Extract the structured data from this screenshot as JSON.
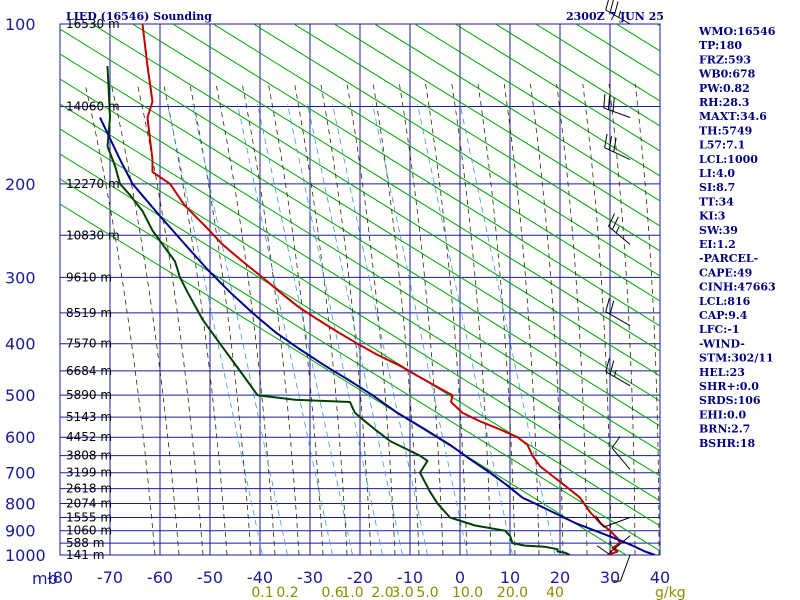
{
  "chart_data": {
    "type": "line",
    "title": "LIED (16546) Sounding",
    "valid_time": "2300Z  7 JUN 25",
    "pressure_ticks": [
      "100",
      "200",
      "300",
      "400",
      "500",
      "600",
      "700",
      "800",
      "900",
      "1000"
    ],
    "pressure_levels": [
      100,
      200,
      300,
      400,
      500,
      600,
      700,
      800,
      900,
      1000
    ],
    "temperature_ticks": [
      "-80",
      "-70",
      "-60",
      "-50",
      "-40",
      "-30",
      "-20",
      "-10",
      "0",
      "10",
      "20",
      "30",
      "40"
    ],
    "temperature_values": [
      -80,
      -70,
      -60,
      -50,
      -40,
      -30,
      -20,
      -10,
      0,
      10,
      20,
      30,
      40
    ],
    "pressure_axis_unit": "mb",
    "mixing_ratio_unit": "g/kg",
    "mixing_ratio_ticks": [
      {
        "label": "0.1",
        "t": -39.5
      },
      {
        "label": "0.2",
        "t": -34.5
      },
      {
        "label": "0.6",
        "t": -25.5
      },
      {
        "label": "1.0",
        "t": -21.5
      },
      {
        "label": "2.0",
        "t": -15.5
      },
      {
        "label": "3.0",
        "t": -11.5
      },
      {
        "label": "5.0",
        "t": -6.5
      },
      {
        "label": "10.0",
        "t": 1.5
      },
      {
        "label": "20.0",
        "t": 10.5
      },
      {
        "label": "40",
        "t": 19.0
      }
    ],
    "height_labels": [
      {
        "label": "16530 m",
        "p": 100
      },
      {
        "label": "14060 m",
        "p": 143
      },
      {
        "label": "12270 m",
        "p": 200
      },
      {
        "label": "10830 m",
        "p": 250
      },
      {
        "label": "9610 m",
        "p": 300
      },
      {
        "label": "8519 m",
        "p": 350
      },
      {
        "label": "7570 m",
        "p": 400
      },
      {
        "label": "6684 m",
        "p": 450
      },
      {
        "label": "5890 m",
        "p": 500
      },
      {
        "label": "5143 m",
        "p": 550
      },
      {
        "label": "4452 m",
        "p": 600
      },
      {
        "label": "3808 m",
        "p": 650
      },
      {
        "label": "3199 m",
        "p": 700
      },
      {
        "label": "2618 m",
        "p": 750
      },
      {
        "label": "2074 m",
        "p": 800
      },
      {
        "label": "1555 m",
        "p": 850
      },
      {
        "label": "1060 m",
        "p": 900
      },
      {
        "label": "588 m",
        "p": 950
      },
      {
        "label": "141 m",
        "p": 1000
      }
    ],
    "series": [
      {
        "name": "Temperature",
        "color": "#c00000",
        "points": [
          [
            -63.5,
            100
          ],
          [
            -62.5,
            120
          ],
          [
            -61.5,
            140
          ],
          [
            -62.5,
            150
          ],
          [
            -62.0,
            165
          ],
          [
            -61.5,
            180
          ],
          [
            -61.5,
            190
          ],
          [
            -58.0,
            200
          ],
          [
            -55.0,
            220
          ],
          [
            -51.0,
            240
          ],
          [
            -47.5,
            260
          ],
          [
            -43.5,
            280
          ],
          [
            -39.5,
            300
          ],
          [
            -36.0,
            320
          ],
          [
            -32.5,
            340
          ],
          [
            -28.5,
            360
          ],
          [
            -24.5,
            380
          ],
          [
            -20.5,
            400
          ],
          [
            -16.5,
            420
          ],
          [
            -12.0,
            440
          ],
          [
            -8.5,
            460
          ],
          [
            -5.0,
            480
          ],
          [
            -1.5,
            500
          ],
          [
            -1.8,
            515
          ],
          [
            0.5,
            540
          ],
          [
            4.0,
            560
          ],
          [
            8.0,
            580
          ],
          [
            11.5,
            600
          ],
          [
            13.5,
            620
          ],
          [
            14.5,
            650
          ],
          [
            16.0,
            680
          ],
          [
            18.5,
            710
          ],
          [
            21.0,
            740
          ],
          [
            24.0,
            780
          ],
          [
            26.0,
            830
          ],
          [
            28.0,
            870
          ],
          [
            30.0,
            900
          ],
          [
            31.5,
            930
          ],
          [
            32.0,
            950
          ],
          [
            30.5,
            970
          ],
          [
            31.5,
            985
          ],
          [
            29.5,
            1000
          ]
        ]
      },
      {
        "name": "Dewpoint",
        "color": "#004000",
        "points": [
          [
            -70.5,
            120
          ],
          [
            -70.0,
            150
          ],
          [
            -70.5,
            170
          ],
          [
            -69.0,
            185
          ],
          [
            -68.0,
            200
          ],
          [
            -66.0,
            210
          ],
          [
            -63.5,
            225
          ],
          [
            -61.5,
            245
          ],
          [
            -57.0,
            280
          ],
          [
            -56.0,
            300
          ],
          [
            -54.5,
            320
          ],
          [
            -51.5,
            360
          ],
          [
            -48.0,
            400
          ],
          [
            -44.0,
            450
          ],
          [
            -40.5,
            500
          ],
          [
            -33.0,
            510
          ],
          [
            -22.0,
            515
          ],
          [
            -21.0,
            540
          ],
          [
            -19.0,
            560
          ],
          [
            -17.0,
            580
          ],
          [
            -14.0,
            610
          ],
          [
            -11.0,
            630
          ],
          [
            -8.0,
            650
          ],
          [
            -6.5,
            665
          ],
          [
            -8.0,
            700
          ],
          [
            -6.0,
            760
          ],
          [
            -4.5,
            800
          ],
          [
            -2.0,
            850
          ],
          [
            3.0,
            880
          ],
          [
            9.0,
            900
          ],
          [
            10.0,
            920
          ],
          [
            10.5,
            950
          ],
          [
            13.0,
            960
          ],
          [
            17.0,
            965
          ],
          [
            19.5,
            975
          ],
          [
            19.5,
            985
          ],
          [
            21.0,
            990
          ],
          [
            22.0,
            1000
          ]
        ]
      },
      {
        "name": "Parcel",
        "color": "#00008b",
        "points": [
          [
            -72.0,
            150
          ],
          [
            -68.0,
            180
          ],
          [
            -65.5,
            200
          ],
          [
            -60.0,
            230
          ],
          [
            -55.0,
            260
          ],
          [
            -50.5,
            290
          ],
          [
            -46.0,
            320
          ],
          [
            -41.5,
            350
          ],
          [
            -37.0,
            380
          ],
          [
            -32.0,
            410
          ],
          [
            -27.0,
            440
          ],
          [
            -22.0,
            470
          ],
          [
            -17.5,
            500
          ],
          [
            -12.5,
            540
          ],
          [
            -7.0,
            580
          ],
          [
            -2.0,
            620
          ],
          [
            2.0,
            660
          ],
          [
            6.0,
            700
          ],
          [
            9.5,
            740
          ],
          [
            12.5,
            780
          ],
          [
            15.0,
            800
          ],
          [
            18.5,
            830
          ],
          [
            23.0,
            870
          ],
          [
            27.0,
            900
          ],
          [
            31.0,
            930
          ],
          [
            34.5,
            960
          ],
          [
            37.0,
            985
          ],
          [
            39.0,
            1000
          ]
        ]
      }
    ]
  },
  "indices": [
    "WMO:16546",
    "TP:180",
    "FRZ:593",
    "WB0:678",
    "PW:0.82",
    "RH:28.3",
    "MAXT:34.6",
    "TH:5749",
    "L57:7.1",
    "LCL:1000",
    "LI:4.0",
    "SI:8.7",
    "TT:34",
    "KI:3",
    "SW:39",
    "EI:1.2",
    "-PARCEL-",
    "CAPE:49",
    "CINH:47663",
    "LCL:816",
    "CAP:9.4",
    "LFC:-1",
    "-WIND-",
    "STM:302/11",
    "HEL:23",
    "SHR+:0.0",
    "SRDS:106",
    "EHI:0.0",
    "BRN:2.7",
    "BSHR:18"
  ],
  "wind_levels": [
    {
      "p": 100,
      "dir": 300,
      "spd": 35
    },
    {
      "p": 150,
      "dir": 290,
      "spd": 30
    },
    {
      "p": 180,
      "dir": 295,
      "spd": 30
    },
    {
      "p": 260,
      "dir": 310,
      "spd": 25
    },
    {
      "p": 370,
      "dir": 300,
      "spd": 20
    },
    {
      "p": 480,
      "dir": 300,
      "spd": 25
    },
    {
      "p": 690,
      "dir": 320,
      "spd": 10
    },
    {
      "p": 850,
      "dir": 250,
      "spd": 10
    },
    {
      "p": 920,
      "dir": 230,
      "spd": 10
    },
    {
      "p": 1000,
      "dir": 200,
      "spd": 5
    }
  ],
  "colors": {
    "grid": "#1a1a9c",
    "isotherm_diag": "#00aa00",
    "dry_adiabat": "#2b2b00",
    "mixing_ratio": "#3a9ad9",
    "temperature": "#c00000",
    "dewpoint": "#004000",
    "parcel": "#00008b",
    "axis_text": "#1a1a9c",
    "index_text": "#000080",
    "mixing_text": "#8b8b00"
  }
}
